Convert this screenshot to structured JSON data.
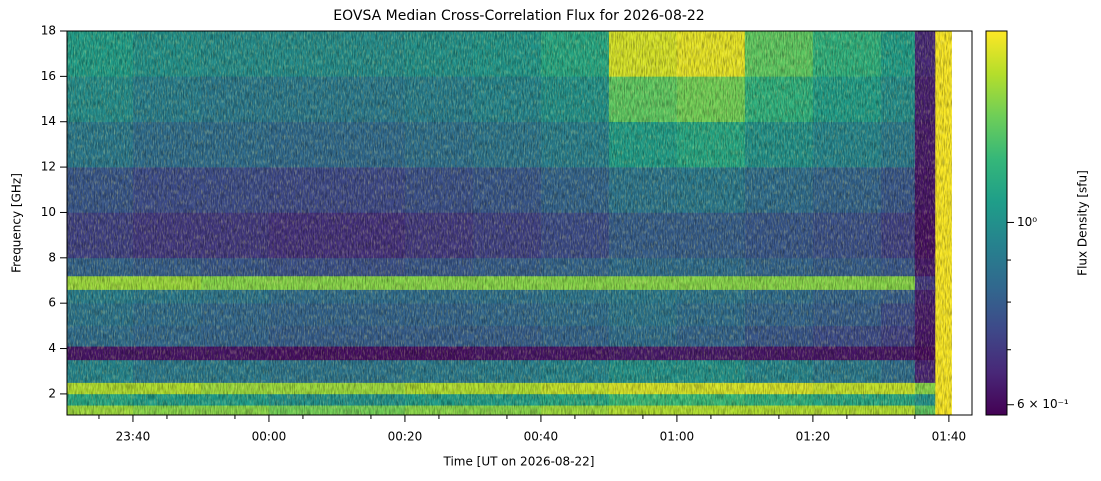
{
  "chart_data": {
    "type": "heatmap",
    "title": "EOVSA Median Cross-Correlation Flux for 2026-08-22",
    "x_label": "Time [UT on 2026-08-22]",
    "y_label": "Frequency [GHz]",
    "colorbar_label": "Flux Density [sfu]",
    "colormap": "viridis",
    "color_scale": "log",
    "xlim": [
      -29.7,
      103.4
    ],
    "ylim": [
      1.07,
      18
    ],
    "clim": [
      0.583,
      1.71
    ],
    "xticks": [
      {
        "value": -20,
        "label": "23:40"
      },
      {
        "value": 0,
        "label": "00:00"
      },
      {
        "value": 20,
        "label": "00:20"
      },
      {
        "value": 40,
        "label": "00:40"
      },
      {
        "value": 60,
        "label": "01:00"
      },
      {
        "value": 80,
        "label": "01:20"
      },
      {
        "value": 100,
        "label": "01:40"
      }
    ],
    "xminorticks": [
      -25,
      -15,
      -5,
      5,
      15,
      25,
      35,
      45,
      55,
      65,
      75,
      85,
      95
    ],
    "yticks": [
      2,
      4,
      6,
      8,
      10,
      12,
      14,
      16,
      18
    ],
    "cticks": [
      {
        "value": 0.6,
        "label": "6 × 10⁻¹"
      },
      {
        "value": 1,
        "label": "10⁰"
      }
    ],
    "cminorticks": [
      0.7,
      0.8,
      0.9
    ],
    "x_bins": [
      -30,
      -20,
      -10,
      0,
      10,
      20,
      30,
      40,
      50,
      60,
      70,
      80,
      90,
      95,
      98,
      100.4
    ],
    "y_bins": [
      1.07,
      1.5,
      2.0,
      2.5,
      3.5,
      4.1,
      5,
      6,
      6.6,
      7.2,
      8,
      10,
      12,
      14,
      16,
      18
    ],
    "z": [
      [
        1.45,
        1.4,
        1.4,
        1.35,
        1.35,
        1.4,
        1.4,
        1.45,
        1.5,
        1.5,
        1.5,
        1.5,
        1.5,
        1.3,
        1.7
      ],
      [
        1.1,
        1.05,
        1.05,
        1.0,
        1.0,
        1.05,
        1.05,
        1.1,
        1.2,
        1.2,
        1.15,
        1.1,
        1.1,
        1.0,
        1.7
      ],
      [
        1.5,
        1.5,
        1.45,
        1.45,
        1.45,
        1.5,
        1.5,
        1.55,
        1.6,
        1.6,
        1.6,
        1.55,
        1.55,
        1.4,
        1.7
      ],
      [
        0.95,
        0.9,
        0.9,
        0.88,
        0.88,
        0.9,
        0.92,
        0.95,
        1.0,
        1.0,
        0.95,
        0.9,
        0.85,
        0.65,
        1.7
      ],
      [
        0.62,
        0.62,
        0.62,
        0.61,
        0.61,
        0.61,
        0.62,
        0.62,
        0.63,
        0.63,
        0.62,
        0.62,
        0.62,
        0.6,
        1.7
      ],
      [
        0.85,
        0.83,
        0.82,
        0.8,
        0.8,
        0.8,
        0.8,
        0.82,
        0.85,
        0.82,
        0.78,
        0.75,
        0.72,
        0.62,
        1.7
      ],
      [
        0.88,
        0.85,
        0.83,
        0.82,
        0.82,
        0.82,
        0.83,
        0.85,
        0.88,
        0.85,
        0.82,
        0.8,
        0.75,
        0.63,
        1.7
      ],
      [
        0.92,
        0.9,
        0.88,
        0.85,
        0.85,
        0.85,
        0.86,
        0.88,
        0.9,
        0.88,
        0.85,
        0.82,
        0.8,
        0.64,
        1.7
      ],
      [
        1.45,
        1.45,
        1.4,
        1.4,
        1.4,
        1.4,
        1.4,
        1.4,
        1.4,
        1.4,
        1.4,
        1.4,
        1.4,
        0.7,
        1.7
      ],
      [
        0.82,
        0.8,
        0.78,
        0.76,
        0.76,
        0.78,
        0.8,
        0.82,
        0.85,
        0.85,
        0.82,
        0.8,
        0.78,
        0.63,
        1.7
      ],
      [
        0.72,
        0.7,
        0.7,
        0.68,
        0.68,
        0.7,
        0.72,
        0.75,
        0.8,
        0.8,
        0.78,
        0.76,
        0.72,
        0.61,
        1.7
      ],
      [
        0.78,
        0.75,
        0.75,
        0.74,
        0.74,
        0.76,
        0.78,
        0.82,
        0.88,
        0.9,
        0.85,
        0.82,
        0.78,
        0.62,
        1.7
      ],
      [
        0.9,
        0.85,
        0.85,
        0.84,
        0.84,
        0.86,
        0.88,
        0.92,
        1.05,
        1.1,
        1.0,
        0.95,
        0.9,
        0.63,
        1.7
      ],
      [
        0.98,
        0.92,
        0.9,
        0.9,
        0.9,
        0.92,
        0.95,
        1.0,
        1.3,
        1.35,
        1.15,
        1.05,
        0.98,
        0.64,
        1.7
      ],
      [
        1.05,
        1.0,
        0.98,
        0.98,
        0.98,
        1.0,
        1.02,
        1.1,
        1.6,
        1.65,
        1.3,
        1.15,
        1.05,
        0.66,
        1.7
      ]
    ]
  }
}
